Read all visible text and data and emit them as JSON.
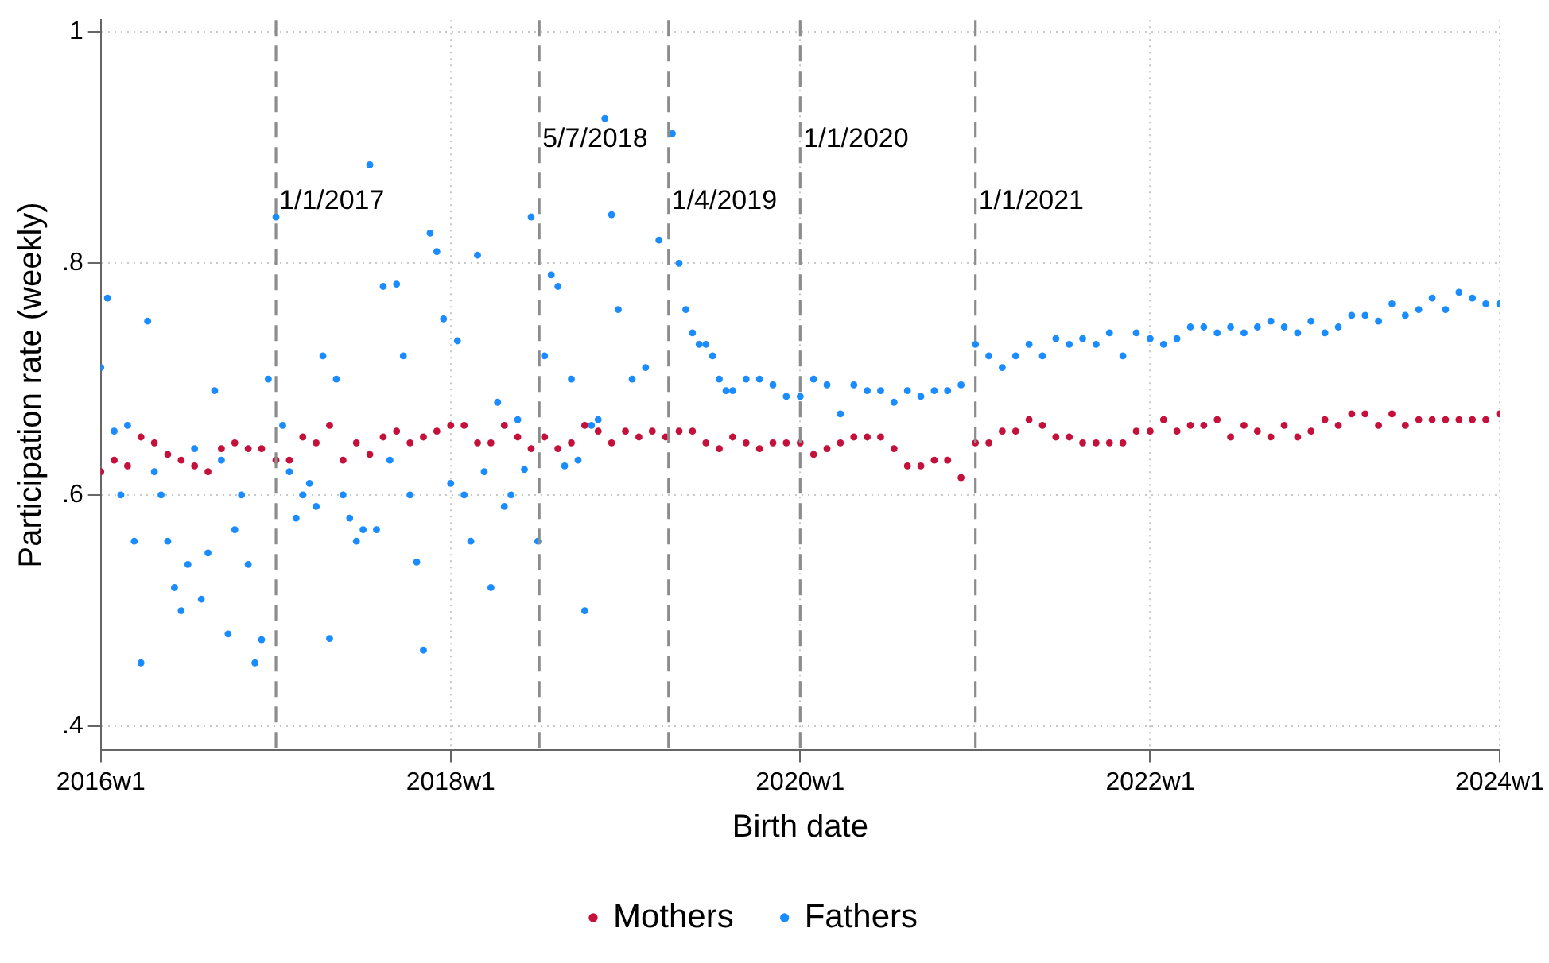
{
  "chart_data": {
    "type": "scatter",
    "xlabel": "Birth date",
    "ylabel": "Participation rate (weekly)",
    "xlim": [
      "2016-01-01",
      "2024-01-01"
    ],
    "xticks": [
      {
        "value": "2016-01-01",
        "label": "2016w1"
      },
      {
        "value": "2018-01-01",
        "label": "2018w1"
      },
      {
        "value": "2020-01-01",
        "label": "2020w1"
      },
      {
        "value": "2022-01-01",
        "label": "2022w1"
      },
      {
        "value": "2024-01-01",
        "label": "2024w1"
      }
    ],
    "ylim": [
      0.38,
      1.01
    ],
    "yticks": [
      {
        "value": 0.4,
        "label": ".4"
      },
      {
        "value": 0.6,
        "label": ".6"
      },
      {
        "value": 0.8,
        "label": ".8"
      },
      {
        "value": 1,
        "label": "1"
      }
    ],
    "grid": true,
    "legend": "bottom",
    "marker": "circle",
    "ref_lines": [
      {
        "axis": "x",
        "value": "2017-01-01",
        "label": "1/1/2017",
        "color": "#8c8c8c",
        "line_style": "dashed"
      },
      {
        "axis": "x",
        "value": "2018-07-05",
        "label": "5/7/2018",
        "color": "#8c8c8c",
        "line_style": "dashed"
      },
      {
        "axis": "x",
        "value": "2019-04-01",
        "label": "1/4/2019",
        "color": "#8c8c8c",
        "line_style": "dashed"
      },
      {
        "axis": "x",
        "value": "2020-01-01",
        "label": "1/1/2020",
        "color": "#8c8c8c",
        "line_style": "dashed"
      },
      {
        "axis": "x",
        "value": "2021-01-01",
        "label": "1/1/2021",
        "color": "#8c8c8c",
        "line_style": "dashed"
      }
    ],
    "series": [
      {
        "name": "Mothers",
        "color": "#c4103a",
        "x": [
          "2016-01-01",
          "2016-01-29",
          "2016-02-26",
          "2016-03-25",
          "2016-04-22",
          "2016-05-20",
          "2016-06-17",
          "2016-07-15",
          "2016-08-12",
          "2016-09-09",
          "2016-10-07",
          "2016-11-04",
          "2016-12-02",
          "2017-01-01",
          "2017-01-29",
          "2017-02-26",
          "2017-03-26",
          "2017-04-23",
          "2017-05-21",
          "2017-06-18",
          "2017-07-16",
          "2017-08-13",
          "2017-09-10",
          "2017-10-08",
          "2017-11-05",
          "2017-12-03",
          "2018-01-01",
          "2018-01-29",
          "2018-02-26",
          "2018-03-26",
          "2018-04-23",
          "2018-05-21",
          "2018-06-18",
          "2018-07-16",
          "2018-08-13",
          "2018-09-10",
          "2018-10-08",
          "2018-11-05",
          "2018-12-03",
          "2019-01-01",
          "2019-01-29",
          "2019-02-26",
          "2019-03-26",
          "2019-04-23",
          "2019-05-21",
          "2019-06-18",
          "2019-07-16",
          "2019-08-13",
          "2019-09-10",
          "2019-10-08",
          "2019-11-05",
          "2019-12-03",
          "2020-01-01",
          "2020-01-29",
          "2020-02-26",
          "2020-03-25",
          "2020-04-22",
          "2020-05-20",
          "2020-06-17",
          "2020-07-15",
          "2020-08-12",
          "2020-09-09",
          "2020-10-07",
          "2020-11-04",
          "2020-12-02",
          "2021-01-01",
          "2021-01-29",
          "2021-02-26",
          "2021-03-26",
          "2021-04-23",
          "2021-05-21",
          "2021-06-18",
          "2021-07-16",
          "2021-08-13",
          "2021-09-10",
          "2021-10-08",
          "2021-11-05",
          "2021-12-03",
          "2022-01-01",
          "2022-01-29",
          "2022-02-26",
          "2022-03-26",
          "2022-04-23",
          "2022-05-21",
          "2022-06-18",
          "2022-07-16",
          "2022-08-13",
          "2022-09-10",
          "2022-10-08",
          "2022-11-05",
          "2022-12-03",
          "2023-01-01",
          "2023-01-29",
          "2023-02-26",
          "2023-03-26",
          "2023-04-23",
          "2023-05-21",
          "2023-06-18",
          "2023-07-16",
          "2023-08-13",
          "2023-09-10",
          "2023-10-08",
          "2023-11-05",
          "2023-12-03",
          "2024-01-01"
        ],
        "values": [
          0.62,
          0.63,
          0.625,
          0.65,
          0.645,
          0.635,
          0.63,
          0.625,
          0.62,
          0.64,
          0.645,
          0.64,
          0.64,
          0.63,
          0.63,
          0.65,
          0.645,
          0.66,
          0.63,
          0.645,
          0.635,
          0.65,
          0.655,
          0.645,
          0.65,
          0.655,
          0.66,
          0.66,
          0.645,
          0.645,
          0.66,
          0.65,
          0.64,
          0.65,
          0.64,
          0.645,
          0.66,
          0.655,
          0.645,
          0.655,
          0.65,
          0.655,
          0.65,
          0.655,
          0.655,
          0.645,
          0.64,
          0.65,
          0.645,
          0.64,
          0.645,
          0.645,
          0.645,
          0.635,
          0.64,
          0.645,
          0.65,
          0.65,
          0.65,
          0.64,
          0.625,
          0.625,
          0.63,
          0.63,
          0.615,
          0.645,
          0.645,
          0.655,
          0.655,
          0.665,
          0.66,
          0.65,
          0.65,
          0.645,
          0.645,
          0.645,
          0.645,
          0.655,
          0.655,
          0.665,
          0.655,
          0.66,
          0.66,
          0.665,
          0.65,
          0.66,
          0.655,
          0.65,
          0.66,
          0.65,
          0.655,
          0.665,
          0.66,
          0.67,
          0.67,
          0.66,
          0.67,
          0.66,
          0.665,
          0.665,
          0.665,
          0.665,
          0.665,
          0.665,
          0.67
        ]
      },
      {
        "name": "Fathers",
        "color": "#1a8cff",
        "x": [
          "2016-01-01",
          "2016-01-15",
          "2016-01-29",
          "2016-02-12",
          "2016-02-26",
          "2016-03-11",
          "2016-03-25",
          "2016-04-08",
          "2016-04-22",
          "2016-05-06",
          "2016-05-20",
          "2016-06-03",
          "2016-06-17",
          "2016-07-01",
          "2016-07-15",
          "2016-07-29",
          "2016-08-12",
          "2016-08-26",
          "2016-09-09",
          "2016-09-23",
          "2016-10-07",
          "2016-10-21",
          "2016-11-04",
          "2016-11-18",
          "2016-12-02",
          "2016-12-16",
          "2017-01-01",
          "2017-01-15",
          "2017-01-29",
          "2017-02-12",
          "2017-02-26",
          "2017-03-12",
          "2017-03-26",
          "2017-04-09",
          "2017-04-23",
          "2017-05-07",
          "2017-05-21",
          "2017-06-04",
          "2017-06-18",
          "2017-07-02",
          "2017-07-16",
          "2017-07-30",
          "2017-08-13",
          "2017-08-27",
          "2017-09-10",
          "2017-09-24",
          "2017-10-08",
          "2017-10-22",
          "2017-11-05",
          "2017-11-19",
          "2017-12-03",
          "2017-12-17",
          "2018-01-01",
          "2018-01-15",
          "2018-01-29",
          "2018-02-12",
          "2018-02-26",
          "2018-03-12",
          "2018-03-26",
          "2018-04-09",
          "2018-04-23",
          "2018-05-07",
          "2018-05-21",
          "2018-06-04",
          "2018-06-18",
          "2018-07-02",
          "2018-07-16",
          "2018-07-30",
          "2018-08-13",
          "2018-08-27",
          "2018-09-10",
          "2018-09-24",
          "2018-10-08",
          "2018-10-22",
          "2018-11-05",
          "2018-11-19",
          "2018-12-03",
          "2018-12-17",
          "2019-01-15",
          "2019-02-12",
          "2019-03-12",
          "2019-04-09",
          "2019-04-23",
          "2019-05-07",
          "2019-05-21",
          "2019-06-04",
          "2019-06-18",
          "2019-07-02",
          "2019-07-16",
          "2019-07-30",
          "2019-08-13",
          "2019-09-10",
          "2019-10-08",
          "2019-11-05",
          "2019-12-03",
          "2020-01-01",
          "2020-01-29",
          "2020-02-26",
          "2020-03-25",
          "2020-04-22",
          "2020-05-20",
          "2020-06-17",
          "2020-07-15",
          "2020-08-12",
          "2020-09-09",
          "2020-10-07",
          "2020-11-04",
          "2020-12-02",
          "2021-01-01",
          "2021-01-29",
          "2021-02-26",
          "2021-03-26",
          "2021-04-23",
          "2021-05-21",
          "2021-06-18",
          "2021-07-16",
          "2021-08-13",
          "2021-09-10",
          "2021-10-08",
          "2021-11-05",
          "2021-12-03",
          "2022-01-01",
          "2022-01-29",
          "2022-02-26",
          "2022-03-26",
          "2022-04-23",
          "2022-05-21",
          "2022-06-18",
          "2022-07-16",
          "2022-08-13",
          "2022-09-10",
          "2022-10-08",
          "2022-11-05",
          "2022-12-03",
          "2023-01-01",
          "2023-01-29",
          "2023-02-26",
          "2023-03-26",
          "2023-04-23",
          "2023-05-21",
          "2023-06-18",
          "2023-07-16",
          "2023-08-13",
          "2023-09-10",
          "2023-10-08",
          "2023-11-05",
          "2023-12-03",
          "2024-01-01"
        ],
        "values": [
          0.71,
          0.77,
          0.655,
          0.6,
          0.66,
          0.56,
          0.455,
          0.75,
          0.62,
          0.6,
          0.56,
          0.52,
          0.5,
          0.54,
          0.64,
          0.51,
          0.55,
          0.69,
          0.63,
          0.48,
          0.57,
          0.6,
          0.54,
          0.455,
          0.475,
          0.7,
          0.84,
          0.66,
          0.62,
          0.58,
          0.6,
          0.61,
          0.59,
          0.72,
          0.476,
          0.7,
          0.6,
          0.58,
          0.56,
          0.57,
          0.885,
          0.57,
          0.78,
          0.63,
          0.782,
          0.72,
          0.6,
          0.542,
          0.466,
          0.826,
          0.81,
          0.752,
          0.61,
          0.733,
          0.6,
          0.56,
          0.807,
          0.62,
          0.52,
          0.68,
          0.59,
          0.6,
          0.665,
          0.622,
          0.84,
          0.56,
          0.72,
          0.79,
          0.78,
          0.625,
          0.7,
          0.63,
          0.5,
          0.66,
          0.665,
          0.925,
          0.842,
          0.76,
          0.7,
          0.71,
          0.82,
          0.912,
          0.8,
          0.76,
          0.74,
          0.73,
          0.73,
          0.72,
          0.7,
          0.69,
          0.69,
          0.7,
          0.7,
          0.695,
          0.685,
          0.685,
          0.7,
          0.695,
          0.67,
          0.695,
          0.69,
          0.69,
          0.68,
          0.69,
          0.685,
          0.69,
          0.69,
          0.695,
          0.73,
          0.72,
          0.71,
          0.72,
          0.73,
          0.72,
          0.735,
          0.73,
          0.735,
          0.73,
          0.74,
          0.72,
          0.74,
          0.735,
          0.73,
          0.735,
          0.745,
          0.745,
          0.74,
          0.745,
          0.74,
          0.745,
          0.75,
          0.745,
          0.74,
          0.75,
          0.74,
          0.745,
          0.755,
          0.755,
          0.75,
          0.765,
          0.755,
          0.76,
          0.77,
          0.76,
          0.775,
          0.77,
          0.765,
          0.765
        ]
      }
    ]
  }
}
